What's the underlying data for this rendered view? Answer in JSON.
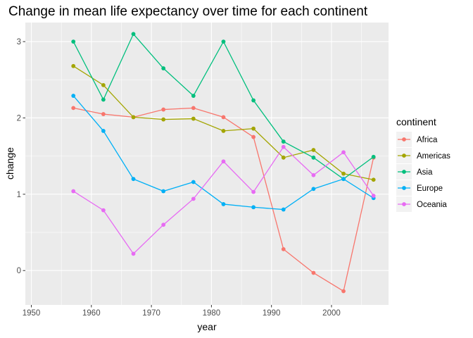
{
  "chart_data": {
    "type": "line",
    "title": "Change in mean life expectancy over time for each continent",
    "xlabel": "year",
    "ylabel": "change",
    "xlim": [
      1949,
      2009.5
    ],
    "ylim": [
      -0.45,
      3.25
    ],
    "x_ticks": [
      1950,
      1960,
      1970,
      1980,
      1990,
      2000
    ],
    "y_ticks": [
      0,
      1,
      2,
      3
    ],
    "grid": true,
    "legend_title": "continent",
    "legend_position": "right",
    "x": [
      1957,
      1962,
      1967,
      1972,
      1977,
      1982,
      1987,
      1992,
      1997,
      2002,
      2007
    ],
    "series": [
      {
        "name": "Africa",
        "color": "#F8766D",
        "values": [
          2.13,
          2.05,
          2.01,
          2.11,
          2.13,
          2.01,
          1.75,
          0.28,
          -0.03,
          -0.27,
          1.48
        ]
      },
      {
        "name": "Americas",
        "color": "#A3A500",
        "values": [
          2.68,
          2.43,
          2.01,
          1.98,
          1.99,
          1.83,
          1.86,
          1.48,
          1.58,
          1.27,
          1.19
        ]
      },
      {
        "name": "Asia",
        "color": "#00BF7D",
        "values": [
          3.0,
          2.24,
          3.1,
          2.65,
          2.29,
          3.0,
          2.23,
          1.69,
          1.48,
          1.2,
          1.49
        ]
      },
      {
        "name": "Europe",
        "color": "#00B0F6",
        "values": [
          2.29,
          1.83,
          1.2,
          1.04,
          1.16,
          0.87,
          0.83,
          0.8,
          1.07,
          1.2,
          0.95
        ]
      },
      {
        "name": "Oceania",
        "color": "#E76BF3",
        "values": [
          1.04,
          0.79,
          0.22,
          0.6,
          0.94,
          1.43,
          1.03,
          1.62,
          1.25,
          1.55,
          0.98
        ]
      }
    ]
  }
}
